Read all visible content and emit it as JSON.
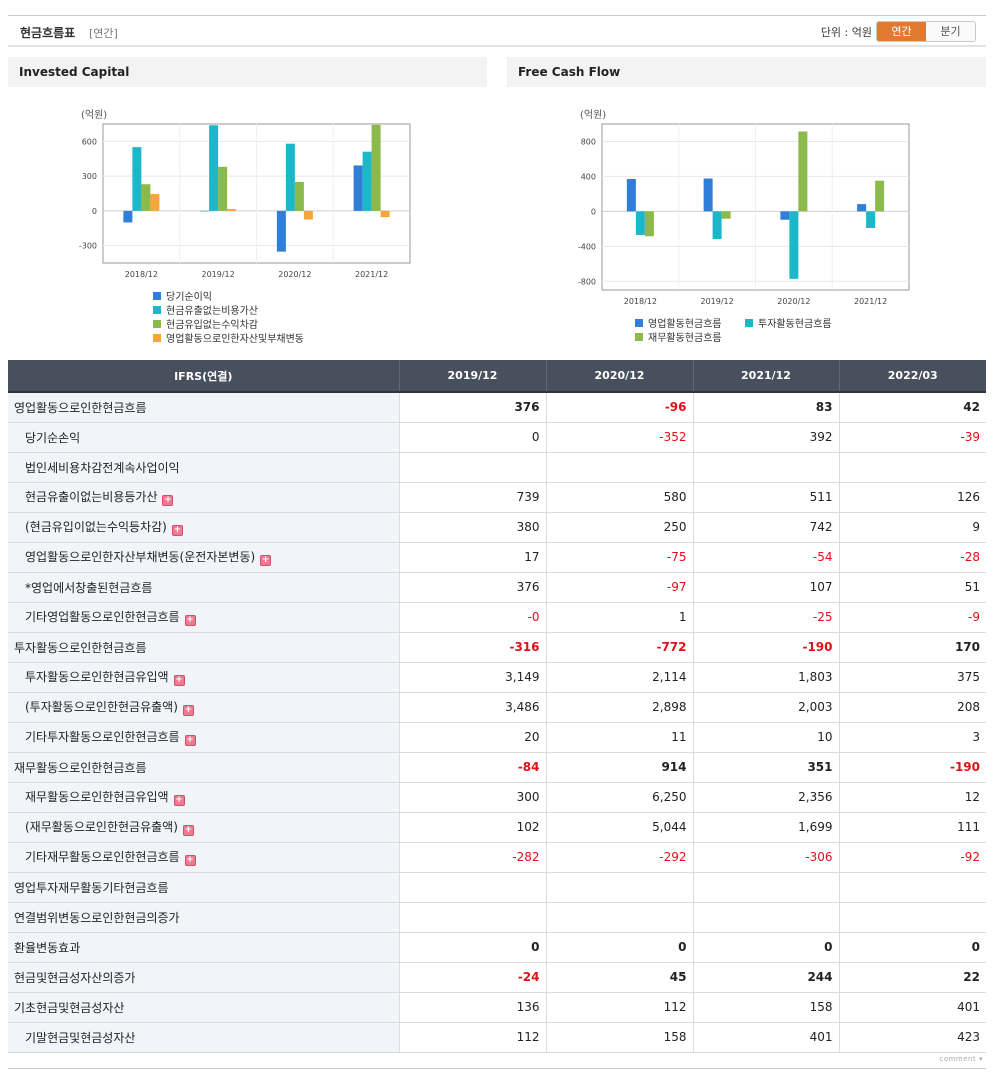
{
  "header": {
    "title": "현금흐름표",
    "period": "[연간]",
    "unit": "단위 : 억원",
    "toggle_annual": "연간",
    "toggle_quarter": "분기"
  },
  "colors": {
    "blue": "#2f7ed8",
    "cyan": "#1bb8c9",
    "green": "#8cba4a",
    "orange": "#f5a53a",
    "header_bg": "#47505c",
    "negative": "#e0101a",
    "accent": "#e07a33"
  },
  "chart_data": [
    {
      "type": "bar",
      "title": "Invested Capital",
      "unit_label": "(억원)",
      "categories": [
        "2018/12",
        "2019/12",
        "2020/12",
        "2021/12"
      ],
      "ylim": [
        -450,
        750
      ],
      "yticks": [
        -300,
        0,
        300,
        600
      ],
      "series": [
        {
          "name": "당기순이익",
          "color": "#2f7ed8",
          "values": [
            -100,
            0,
            -352,
            392
          ]
        },
        {
          "name": "현금유출없는비용가산",
          "color": "#1bb8c9",
          "values": [
            550,
            739,
            580,
            511
          ]
        },
        {
          "name": "현금유입없는수익차감",
          "color": "#8cba4a",
          "values": [
            230,
            380,
            250,
            742
          ]
        },
        {
          "name": "영업활동으로인한자산및부채변동",
          "color": "#f5a53a",
          "values": [
            145,
            17,
            -75,
            -54
          ]
        }
      ]
    },
    {
      "type": "bar",
      "title": "Free Cash Flow",
      "unit_label": "(억원)",
      "categories": [
        "2018/12",
        "2019/12",
        "2020/12",
        "2021/12"
      ],
      "ylim": [
        -900,
        1000
      ],
      "yticks": [
        -800,
        -400,
        0,
        400,
        800
      ],
      "series": [
        {
          "name": "영업활동현금흐름",
          "color": "#2f7ed8",
          "values": [
            370,
            376,
            -96,
            83
          ]
        },
        {
          "name": "투자활동현금흐름",
          "color": "#1bb8c9",
          "values": [
            -270,
            -316,
            -772,
            -190
          ]
        },
        {
          "name": "재무활동현금흐름",
          "color": "#8cba4a",
          "values": [
            -285,
            -84,
            914,
            351
          ]
        }
      ]
    }
  ],
  "table": {
    "header_label": "IFRS(연결)",
    "columns": [
      "2019/12",
      "2020/12",
      "2021/12",
      "2022/03"
    ],
    "rows": [
      {
        "label": "영업활동으로인한현금흐름",
        "major": true,
        "expand": false,
        "values": [
          "376",
          "-96",
          "83",
          "42"
        ]
      },
      {
        "label": "당기순손익",
        "major": false,
        "expand": false,
        "values": [
          "0",
          "-352",
          "392",
          "-39"
        ]
      },
      {
        "label": "법인세비용차감전계속사업이익",
        "major": false,
        "expand": false,
        "values": [
          "",
          "",
          "",
          ""
        ]
      },
      {
        "label": "현금유출이없는비용등가산",
        "major": false,
        "expand": true,
        "values": [
          "739",
          "580",
          "511",
          "126"
        ]
      },
      {
        "label": "(현금유입이없는수익등차감)",
        "major": false,
        "expand": true,
        "values": [
          "380",
          "250",
          "742",
          "9"
        ]
      },
      {
        "label": "영업활동으로인한자산부채변동(운전자본변동)",
        "major": false,
        "expand": true,
        "values": [
          "17",
          "-75",
          "-54",
          "-28"
        ]
      },
      {
        "label": "*영업에서창출된현금흐름",
        "major": false,
        "expand": false,
        "values": [
          "376",
          "-97",
          "107",
          "51"
        ]
      },
      {
        "label": "기타영업활동으로인한현금흐름",
        "major": false,
        "expand": true,
        "values": [
          "-0",
          "1",
          "-25",
          "-9"
        ]
      },
      {
        "label": "투자활동으로인한현금흐름",
        "major": true,
        "expand": false,
        "values": [
          "-316",
          "-772",
          "-190",
          "170"
        ]
      },
      {
        "label": "투자활동으로인한현금유입액",
        "major": false,
        "expand": true,
        "values": [
          "3,149",
          "2,114",
          "1,803",
          "375"
        ]
      },
      {
        "label": "(투자활동으로인한현금유출액)",
        "major": false,
        "expand": true,
        "values": [
          "3,486",
          "2,898",
          "2,003",
          "208"
        ]
      },
      {
        "label": "기타투자활동으로인한현금흐름",
        "major": false,
        "expand": true,
        "values": [
          "20",
          "11",
          "10",
          "3"
        ]
      },
      {
        "label": "재무활동으로인한현금흐름",
        "major": true,
        "expand": false,
        "values": [
          "-84",
          "914",
          "351",
          "-190"
        ]
      },
      {
        "label": "재무활동으로인한현금유입액",
        "major": false,
        "expand": true,
        "values": [
          "300",
          "6,250",
          "2,356",
          "12"
        ]
      },
      {
        "label": "(재무활동으로인한현금유출액)",
        "major": false,
        "expand": true,
        "values": [
          "102",
          "5,044",
          "1,699",
          "111"
        ]
      },
      {
        "label": "기타재무활동으로인한현금흐름",
        "major": false,
        "expand": true,
        "values": [
          "-282",
          "-292",
          "-306",
          "-92"
        ]
      },
      {
        "label": "영업투자재무활동기타현금흐름",
        "major": true,
        "expand": false,
        "values": [
          "",
          "",
          "",
          ""
        ]
      },
      {
        "label": "연결범위변동으로인한현금의증가",
        "major": true,
        "expand": false,
        "values": [
          "",
          "",
          "",
          ""
        ]
      },
      {
        "label": "환율변동효과",
        "major": true,
        "expand": false,
        "values": [
          "0",
          "0",
          "0",
          "0"
        ]
      },
      {
        "label": "현금및현금성자산의증가",
        "major": true,
        "expand": false,
        "values": [
          "-24",
          "45",
          "244",
          "22"
        ]
      },
      {
        "label": "기초현금및현금성자산",
        "major": false,
        "top": true,
        "expand": false,
        "values": [
          "136",
          "112",
          "158",
          "401"
        ]
      },
      {
        "label": "기말현금및현금성자산",
        "major": false,
        "expand": false,
        "values": [
          "112",
          "158",
          "401",
          "423"
        ]
      }
    ]
  },
  "footer": {
    "comment": "comment"
  }
}
